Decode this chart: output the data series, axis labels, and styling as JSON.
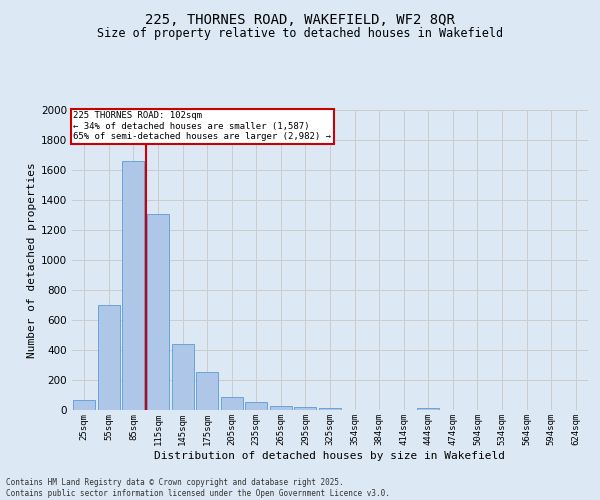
{
  "title_line1": "225, THORNES ROAD, WAKEFIELD, WF2 8QR",
  "title_line2": "Size of property relative to detached houses in Wakefield",
  "xlabel": "Distribution of detached houses by size in Wakefield",
  "ylabel": "Number of detached properties",
  "categories": [
    "25sqm",
    "55sqm",
    "85sqm",
    "115sqm",
    "145sqm",
    "175sqm",
    "205sqm",
    "235sqm",
    "265sqm",
    "295sqm",
    "325sqm",
    "354sqm",
    "384sqm",
    "414sqm",
    "444sqm",
    "474sqm",
    "504sqm",
    "534sqm",
    "564sqm",
    "594sqm",
    "624sqm"
  ],
  "values": [
    65,
    700,
    1660,
    1310,
    440,
    255,
    90,
    55,
    30,
    20,
    15,
    0,
    0,
    0,
    15,
    0,
    0,
    0,
    0,
    0,
    0
  ],
  "bar_color": "#aec6e8",
  "bar_edge_color": "#5b9bd5",
  "vline_color": "#cc0000",
  "annotation_text": "225 THORNES ROAD: 102sqm\n← 34% of detached houses are smaller (1,587)\n65% of semi-detached houses are larger (2,982) →",
  "annotation_box_color": "#cc0000",
  "ylim": [
    0,
    2000
  ],
  "yticks": [
    0,
    200,
    400,
    600,
    800,
    1000,
    1200,
    1400,
    1600,
    1800,
    2000
  ],
  "grid_color": "#cccccc",
  "bg_color": "#dce9f5",
  "footer_line1": "Contains HM Land Registry data © Crown copyright and database right 2025.",
  "footer_line2": "Contains public sector information licensed under the Open Government Licence v3.0."
}
